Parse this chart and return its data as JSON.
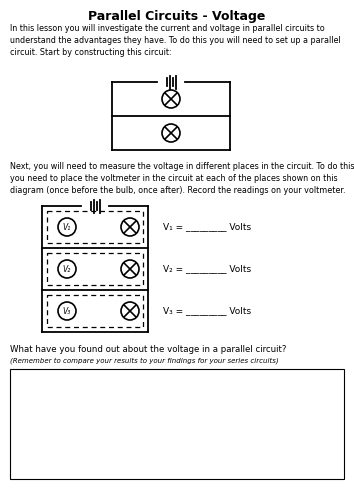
{
  "title": "Parallel Circuits - Voltage",
  "intro_text": "In this lesson you will investigate the current and voltage in parallel circuits to\nunderstand the advantages they have. To do this you will need to set up a parallel\ncircuit. Start by constructing this circuit:",
  "second_text": "Next, you will need to measure the voltage in different places in the circuit. To do this,\nyou need to place the voltmeter in the circuit at each of the places shown on this\ndiagram (once before the bulb, once after). Record the readings on your voltmeter.",
  "v_labels": [
    "V₁ = _________ Volts",
    "V₂ = _________ Volts",
    "V₃ = _________ Volts"
  ],
  "question_text": "What have you found out about the voltage in a parallel circuit?",
  "reminder_text": "(Remember to compare your results to your findings for your series circuits)",
  "bg_color": "#ffffff",
  "text_color": "#000000",
  "line_color": "#000000"
}
